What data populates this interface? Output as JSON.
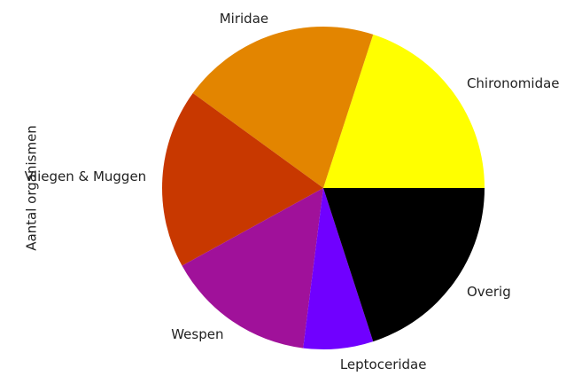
{
  "chart_data": {
    "type": "pie",
    "ylabel": "Aantal organismen",
    "categories": [
      "Chironomidae",
      "Miridae",
      "Vliegen & Muggen",
      "Wespen",
      "Leptoceridae",
      "Overig"
    ],
    "values": [
      20,
      20,
      18,
      15,
      7,
      20
    ],
    "colors": [
      "#ffff00",
      "#e38500",
      "#c83800",
      "#a0119a",
      "#7000ff",
      "#000000"
    ]
  }
}
